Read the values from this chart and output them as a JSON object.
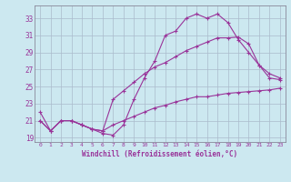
{
  "line1_x": [
    0,
    1,
    2,
    3,
    4,
    5,
    6,
    7,
    8,
    9,
    10,
    11,
    12,
    13,
    14,
    15,
    16,
    17,
    18,
    19,
    20,
    21,
    22,
    23
  ],
  "line1_y": [
    22.0,
    19.8,
    21.0,
    21.0,
    20.5,
    20.0,
    19.5,
    19.3,
    20.5,
    23.5,
    26.0,
    28.0,
    31.0,
    31.5,
    33.0,
    33.5,
    33.0,
    33.5,
    32.5,
    30.5,
    29.0,
    27.5,
    26.0,
    25.8
  ],
  "line2_x": [
    0,
    1,
    2,
    3,
    4,
    5,
    6,
    7,
    8,
    9,
    10,
    11,
    12,
    13,
    14,
    15,
    16,
    17,
    18,
    19,
    20,
    21,
    22,
    23
  ],
  "line2_y": [
    21.0,
    19.8,
    21.0,
    21.0,
    20.5,
    20.0,
    19.8,
    23.5,
    24.5,
    25.5,
    26.5,
    27.3,
    27.8,
    28.5,
    29.2,
    29.7,
    30.2,
    30.7,
    30.7,
    30.8,
    30.0,
    27.5,
    26.5,
    26.0
  ],
  "line3_x": [
    0,
    1,
    2,
    3,
    4,
    5,
    6,
    7,
    8,
    9,
    10,
    11,
    12,
    13,
    14,
    15,
    16,
    17,
    18,
    19,
    20,
    21,
    22,
    23
  ],
  "line3_y": [
    21.0,
    19.8,
    21.0,
    21.0,
    20.5,
    20.0,
    19.8,
    20.5,
    21.0,
    21.5,
    22.0,
    22.5,
    22.8,
    23.2,
    23.5,
    23.8,
    23.8,
    24.0,
    24.2,
    24.3,
    24.4,
    24.5,
    24.6,
    24.8
  ],
  "line_color": "#993399",
  "bg_color": "#cce8f0",
  "grid_color": "#aabbcc",
  "xlabel": "Windchill (Refroidissement éolien,°C)",
  "xlim": [
    -0.5,
    23.5
  ],
  "ylim": [
    18.5,
    34.5
  ],
  "yticks": [
    19,
    21,
    23,
    25,
    27,
    29,
    31,
    33
  ],
  "xticks": [
    0,
    1,
    2,
    3,
    4,
    5,
    6,
    7,
    8,
    9,
    10,
    11,
    12,
    13,
    14,
    15,
    16,
    17,
    18,
    19,
    20,
    21,
    22,
    23
  ],
  "marker": "+"
}
